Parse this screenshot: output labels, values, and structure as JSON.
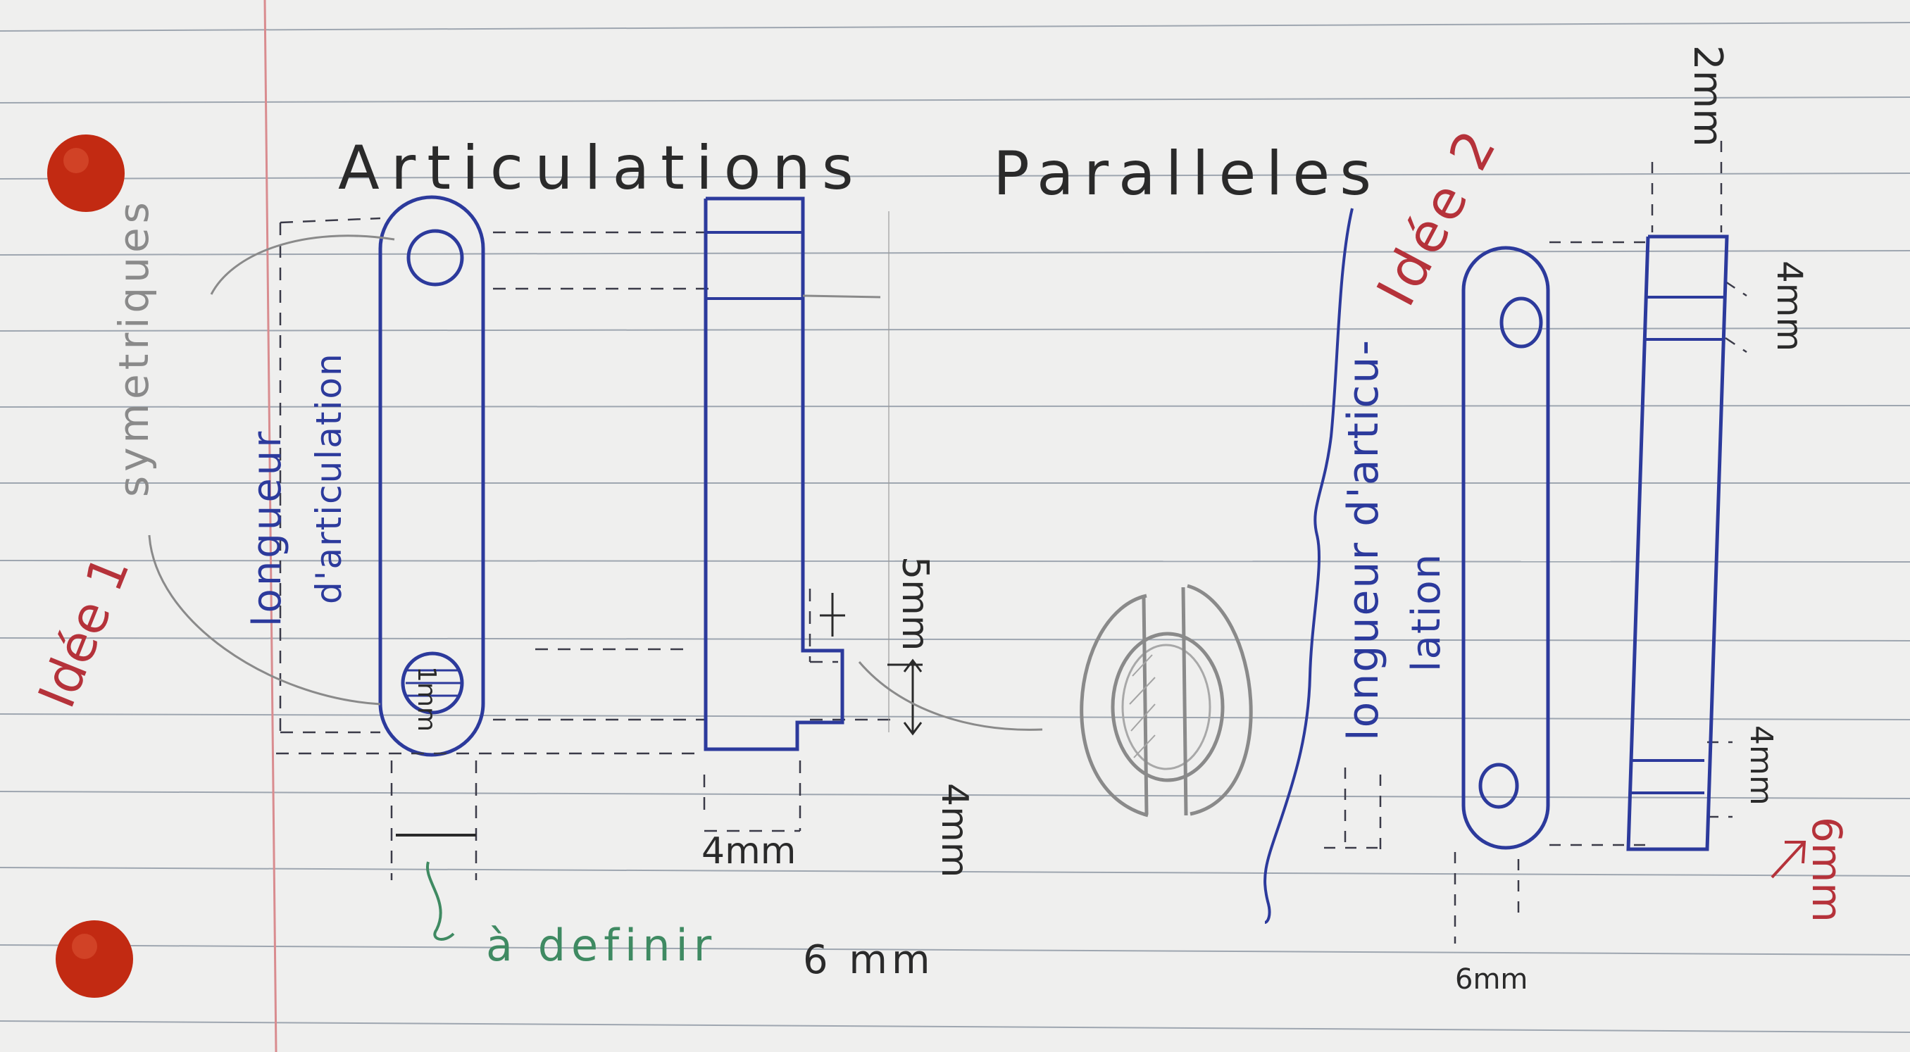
{
  "title": {
    "word1": "Articulations",
    "word2": "Paralleles"
  },
  "labels": {
    "symetriques": "symetriques",
    "idee1": "Idée 1",
    "idee2": "Idée 2",
    "longueur_1a": "longueur",
    "longueur_1b": "d'articulation",
    "longueur_2a": "longueur d'articu-",
    "longueur_2b": "lation",
    "a_definir": "à definir",
    "six_mm_bottom": "6 mm",
    "four_mm_a": "4mm",
    "four_mm_vertical": "4mm",
    "five_mm": "5mm",
    "one_mm": "1mm",
    "two_mm": "2mm",
    "four_mm_right_top": "4mm",
    "four_mm_right_bottom": "4mm",
    "six_mm_right": "6mm",
    "six_mm_idea2": "6mm"
  },
  "colors": {
    "paper": "#efefee",
    "rule": "#9ea6b0",
    "margin": "#d98c8f",
    "ink_blue": "#2c3a9c",
    "ink_gray": "#8a8a8a",
    "ink_red": "#b5323a",
    "ink_green": "#3f8a62",
    "ink_black": "#2a2a2a",
    "hole": "#c22a12"
  }
}
